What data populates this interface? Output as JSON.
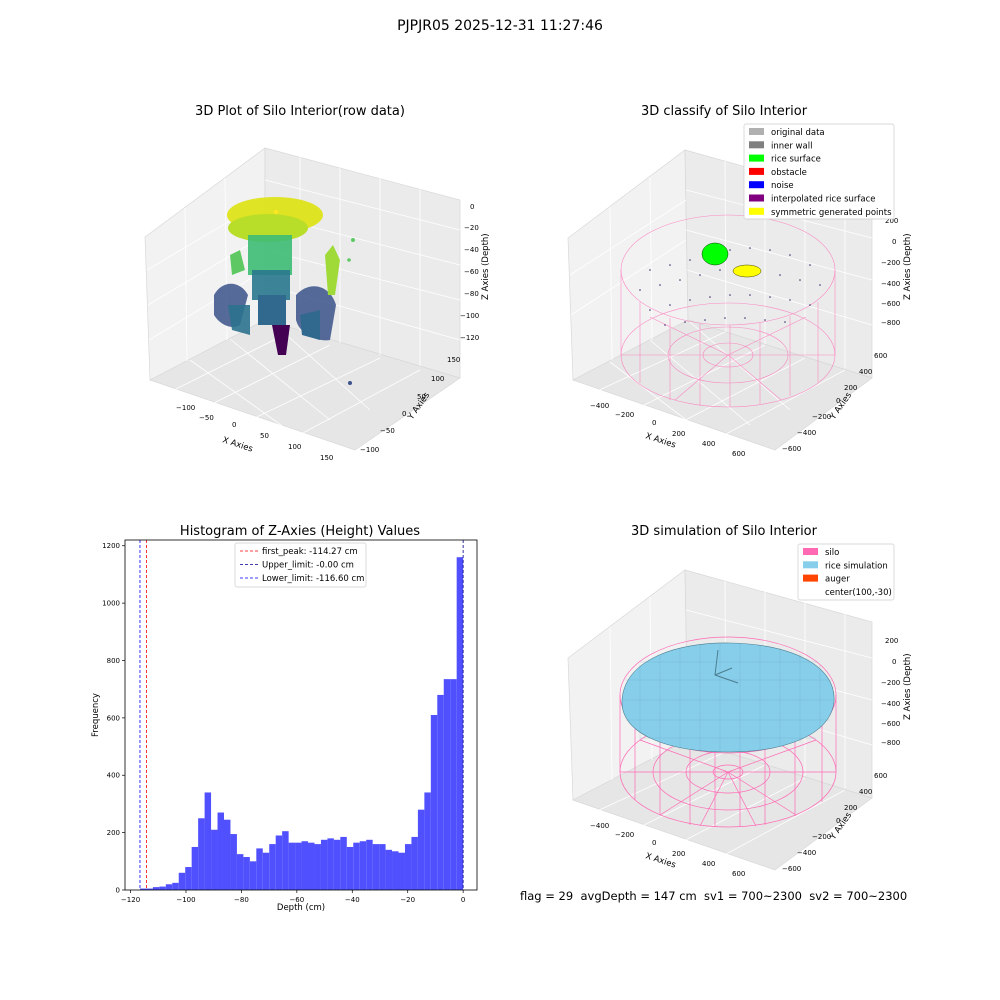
{
  "suptitle": "PJPJR05 2025-12-31 11:27:46",
  "footer": "flag = 29  avgDepth = 147 cm  sv1 = 700~2300  sv2 = 700~2300",
  "panels": {
    "raw": {
      "title": "3D Plot of Silo Interior(row data)",
      "xlabel": "X Axies",
      "ylabel": "Y Axies",
      "zlabel": "Z Axies (Depth)",
      "xticks": [
        "−100",
        "−50",
        "0",
        "50",
        "100",
        "150"
      ],
      "yticks": [
        "150",
        "100",
        "50",
        "0",
        "−50",
        "−100"
      ],
      "zticks": [
        "0",
        "−20",
        "−40",
        "−60",
        "−80",
        "−100",
        "−120"
      ]
    },
    "classify": {
      "title": "3D classify of Silo Interior",
      "xlabel": "X Axies",
      "ylabel": "Y Axies",
      "zlabel": "Z Axies (Depth)",
      "xticks": [
        "−400",
        "−200",
        "0",
        "200",
        "400",
        "600"
      ],
      "yticks": [
        "600",
        "400",
        "200",
        "0",
        "−200",
        "−400",
        "−600"
      ],
      "zticks": [
        "200",
        "0",
        "−200",
        "−400",
        "−600",
        "−800"
      ],
      "legend": [
        {
          "label": "original data",
          "color": "#b0b0b0"
        },
        {
          "label": "inner wall",
          "color": "#808080"
        },
        {
          "label": "rice surface",
          "color": "#00ff00"
        },
        {
          "label": "obstacle",
          "color": "#ff0000"
        },
        {
          "label": "noise",
          "color": "#0000ff"
        },
        {
          "label": "interpolated rice surface",
          "color": "#800080"
        },
        {
          "label": "symmetric generated points",
          "color": "#ffff00"
        }
      ]
    },
    "simulation": {
      "title": "3D simulation of Silo Interior",
      "xlabel": "X Axies",
      "ylabel": "Y Axies",
      "zlabel": "Z Axies (Depth)",
      "xticks": [
        "−400",
        "−200",
        "0",
        "200",
        "400",
        "600"
      ],
      "yticks": [
        "600",
        "400",
        "200",
        "0",
        "−200",
        "−400",
        "−600"
      ],
      "zticks": [
        "200",
        "0",
        "−200",
        "−400",
        "−600",
        "−800"
      ],
      "legend": [
        {
          "label": "silo",
          "color": "#ff69b4"
        },
        {
          "label": "rice simulation",
          "color": "#87ceeb"
        },
        {
          "label": "auger",
          "color": "#ff4500"
        },
        {
          "label": "center(100,-30)",
          "color": ""
        }
      ]
    }
  },
  "chart_data": {
    "type": "bar",
    "title": "Histogram of Z-Axies (Height) Values",
    "xlabel": "Depth (cm)",
    "ylabel": "Frequency",
    "xlim": [
      -122,
      5
    ],
    "ylim": [
      0,
      1220
    ],
    "xticks": [
      -120,
      -100,
      -80,
      -60,
      -40,
      -20,
      0
    ],
    "yticks": [
      0,
      200,
      400,
      600,
      800,
      1000,
      1200
    ],
    "bar_color": "#5050ff",
    "bin_range": [
      -116.6,
      0
    ],
    "bin_values": [
      5,
      5,
      10,
      12,
      20,
      25,
      60,
      80,
      150,
      250,
      340,
      210,
      270,
      245,
      195,
      125,
      115,
      100,
      145,
      130,
      160,
      190,
      205,
      165,
      165,
      170,
      165,
      160,
      175,
      180,
      175,
      185,
      150,
      165,
      170,
      175,
      160,
      160,
      140,
      135,
      130,
      160,
      185,
      280,
      340,
      610,
      680,
      735,
      735,
      1160
    ],
    "vlines": [
      {
        "x": -114.27,
        "color": "#ff0000",
        "label": "first_peak: -114.27 cm"
      },
      {
        "x": -0.0,
        "color": "#00008b",
        "label": "Upper_limit: -0.00 cm"
      },
      {
        "x": -116.6,
        "color": "#0000ff",
        "label": "Lower_limit: -116.60 cm"
      }
    ],
    "legend_position": "upper center"
  }
}
